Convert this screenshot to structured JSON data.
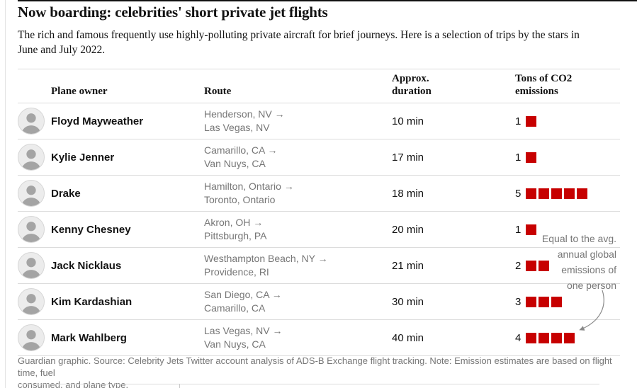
{
  "header": {
    "title": "Now boarding: celebrities' short private jet flights",
    "standfirst": "The rich and famous frequently use highly-polluting private aircraft for brief journeys. Here is a selection of trips by the stars in\nJune and July 2022."
  },
  "table": {
    "headers": {
      "owner": "Plane owner",
      "route": "Route",
      "duration": "Approx.\nduration",
      "emissions": "Tons of CO2\nemissions"
    },
    "rows": [
      {
        "name": "Floyd Mayweather",
        "route_from": "Henderson, NV →",
        "route_to": "Las Vegas, NV",
        "duration": "10 min",
        "emissions_label": "1",
        "emissions": 1
      },
      {
        "name": "Kylie Jenner",
        "route_from": "Camarillo, CA →",
        "route_to": "Van Nuys, CA",
        "duration": "17 min",
        "emissions_label": "1",
        "emissions": 1
      },
      {
        "name": "Drake",
        "route_from": "Hamilton, Ontario →",
        "route_to": "Toronto, Ontario",
        "duration": "18 min",
        "emissions_label": "5",
        "emissions": 5
      },
      {
        "name": "Kenny Chesney",
        "route_from": "Akron, OH →",
        "route_to": "Pittsburgh, PA",
        "duration": "20 min",
        "emissions_label": "1",
        "emissions": 1
      },
      {
        "name": "Jack Nicklaus",
        "route_from": "Westhampton Beach, NY →",
        "route_to": "Providence, RI",
        "duration": "21 min",
        "emissions_label": "2",
        "emissions": 2
      },
      {
        "name": "Kim Kardashian",
        "route_from": "San Diego, CA →",
        "route_to": "Camarillo, CA",
        "duration": "30 min",
        "emissions_label": "3",
        "emissions": 3
      },
      {
        "name": "Mark Wahlberg",
        "route_from": "Las Vegas, NV →",
        "route_to": "Van Nuys, CA",
        "duration": "40 min",
        "emissions_label": "4",
        "emissions": 4
      }
    ]
  },
  "annotation": {
    "text": "Equal to the avg.\nannual global\nemissions of\none person"
  },
  "footer": {
    "text": "Guardian graphic. Source: Celebrity Jets Twitter account analysis of ADS-B Exchange flight tracking. Note: Emission estimates are based on flight time, fuel\nconsumed, and plane type."
  },
  "colors": {
    "emissions_red": "#c70000",
    "text_dark": "#121212",
    "text_gray": "#767676",
    "divider": "#dcdcdc"
  },
  "chart_data": {
    "type": "table",
    "title": "Now boarding: celebrities' short private jet flights",
    "columns": [
      "Plane owner",
      "Route",
      "Approx. duration",
      "Tons of CO2 emissions"
    ],
    "rows": [
      [
        "Floyd Mayweather",
        "Henderson, NV → Las Vegas, NV",
        "10 min",
        1
      ],
      [
        "Kylie Jenner",
        "Camarillo, CA → Van Nuys, CA",
        "17 min",
        1
      ],
      [
        "Drake",
        "Hamilton, Ontario → Toronto, Ontario",
        "18 min",
        5
      ],
      [
        "Kenny Chesney",
        "Akron, OH → Pittsburgh, PA",
        "20 min",
        1
      ],
      [
        "Jack Nicklaus",
        "Westhampton Beach, NY → Providence, RI",
        "21 min",
        2
      ],
      [
        "Kim Kardashian",
        "San Diego, CA → Camarillo, CA",
        "30 min",
        3
      ],
      [
        "Mark Wahlberg",
        "Las Vegas, NV → Van Nuys, CA",
        "40 min",
        4
      ]
    ],
    "unit_square_value_tons": 1,
    "unit_square_color": "#c70000",
    "annotation": "Equal to the avg. annual global emissions of one person",
    "annotation_points_to": "Mark Wahlberg emissions squares"
  }
}
